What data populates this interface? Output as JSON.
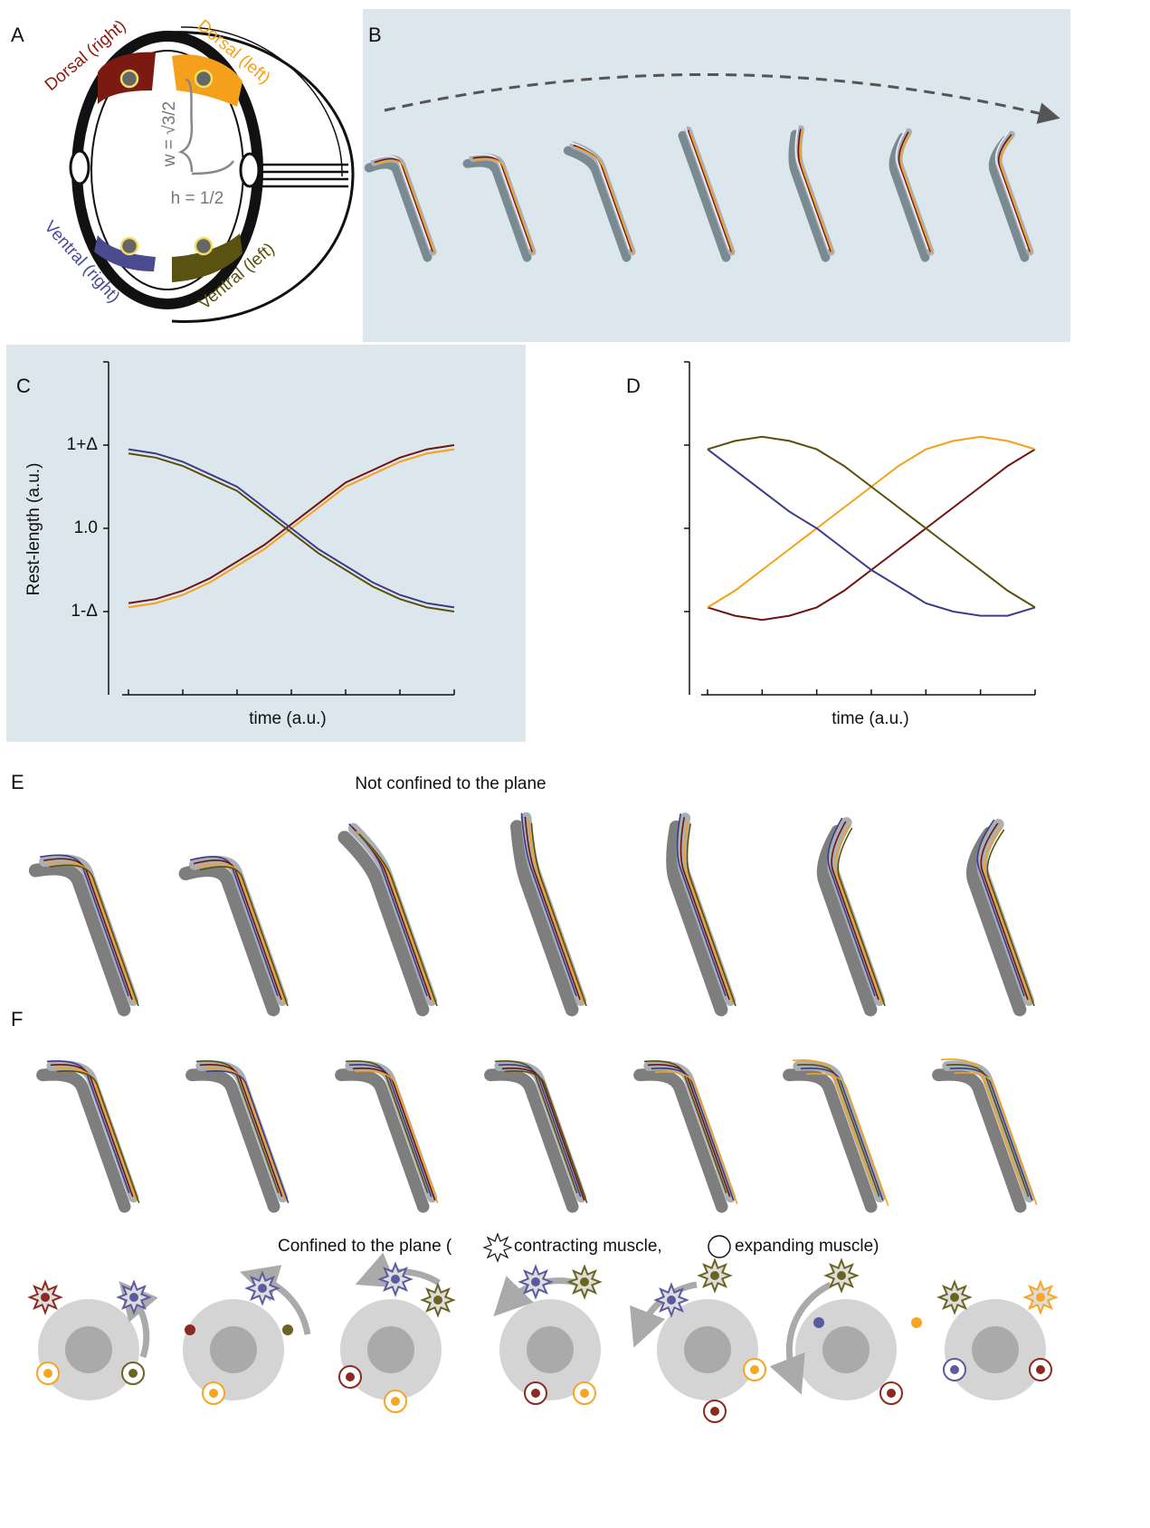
{
  "panel_a": {
    "label": "A",
    "regions": [
      "Dorsal (right)",
      "Dorsal (left)",
      "Ventral (right)",
      "Ventral (left)"
    ],
    "w_label": "w = √3/2",
    "h_label": "h = 1/2"
  },
  "panel_b": {
    "label": "B"
  },
  "chart_data": [
    {
      "type": "line",
      "label": "C",
      "ylabel": "Rest-length (a.u.)",
      "xlabel": "time (a.u.)",
      "x": [
        0,
        1,
        2,
        3,
        4,
        5,
        6,
        7,
        8,
        9,
        10,
        11,
        12
      ],
      "xlim": [
        0,
        12
      ],
      "xticks": [
        0,
        2,
        4,
        6,
        8,
        10,
        12
      ],
      "ylim": [
        0.6,
        1.4
      ],
      "yticks": [
        {
          "value": 0.8,
          "label": "1-Δ"
        },
        {
          "value": 1,
          "label": "1.0"
        },
        {
          "value": 1.2,
          "label": "1+Δ"
        }
      ],
      "series": [
        {
          "color": "#6e1410",
          "values": [
            0.82,
            0.83,
            0.85,
            0.88,
            0.92,
            0.96,
            1.01,
            1.06,
            1.11,
            1.14,
            1.17,
            1.19,
            1.2
          ]
        },
        {
          "color": "#f5a01a",
          "values": [
            0.81,
            0.82,
            0.84,
            0.87,
            0.91,
            0.95,
            1.0,
            1.05,
            1.1,
            1.13,
            1.16,
            1.18,
            1.19
          ]
        },
        {
          "color": "#3b3b8a",
          "values": [
            1.19,
            1.18,
            1.16,
            1.13,
            1.1,
            1.05,
            1.0,
            0.95,
            0.91,
            0.87,
            0.84,
            0.82,
            0.81
          ]
        },
        {
          "color": "#5a4f0a",
          "values": [
            1.18,
            1.17,
            1.15,
            1.12,
            1.09,
            1.04,
            0.99,
            0.94,
            0.9,
            0.86,
            0.83,
            0.81,
            0.8
          ]
        }
      ]
    },
    {
      "type": "line",
      "label": "D",
      "xlabel": "time (a.u.)",
      "x": [
        0,
        1,
        2,
        3,
        4,
        5,
        6,
        7,
        8,
        9,
        10,
        11,
        12
      ],
      "xlim": [
        0,
        12
      ],
      "xticks": [
        0,
        2,
        4,
        6,
        8,
        10,
        12
      ],
      "ylim": [
        0.6,
        1.4
      ],
      "yticks": [
        0.8,
        1,
        1.2
      ],
      "series": [
        {
          "color": "#6e1410",
          "values": [
            0.81,
            0.79,
            0.78,
            0.79,
            0.81,
            0.85,
            0.9,
            0.95,
            1.0,
            1.05,
            1.1,
            1.15,
            1.19
          ]
        },
        {
          "color": "#f5a01a",
          "values": [
            0.81,
            0.85,
            0.9,
            0.95,
            1.0,
            1.05,
            1.1,
            1.15,
            1.19,
            1.21,
            1.22,
            1.21,
            1.19
          ]
        },
        {
          "color": "#3b3b8a",
          "values": [
            1.19,
            1.14,
            1.09,
            1.04,
            1.0,
            0.95,
            0.9,
            0.86,
            0.82,
            0.8,
            0.79,
            0.79,
            0.81
          ]
        },
        {
          "color": "#5a4f0a",
          "values": [
            1.19,
            1.21,
            1.22,
            1.21,
            1.19,
            1.15,
            1.1,
            1.05,
            1.0,
            0.95,
            0.9,
            0.85,
            0.81
          ]
        }
      ]
    }
  ],
  "panel_e": {
    "label": "E",
    "title": "Not confined to the plane"
  },
  "panel_f": {
    "label": "F",
    "caption_start": "Confined to the plane (",
    "contracting": "contracting muscle,",
    "expanding": "expanding muscle)"
  }
}
